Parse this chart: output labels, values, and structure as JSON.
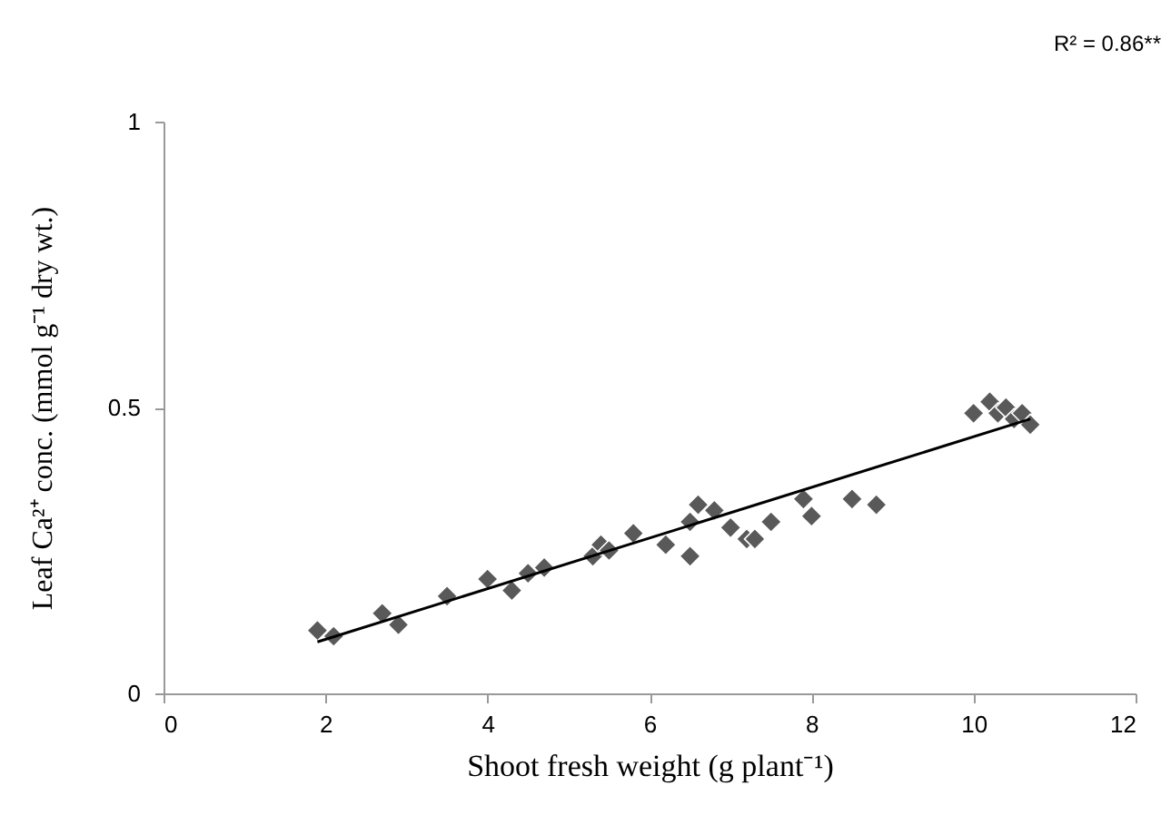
{
  "chart_data": {
    "type": "scatter",
    "xlabel": "Shoot fresh weight (g plant⁻¹)",
    "ylabel": "Leaf Ca²⁺ conc. (mmol g⁻¹ dry wt.)",
    "annotations": [
      "R² = 0.86**"
    ],
    "xlim": [
      0,
      12
    ],
    "xticks": [
      0,
      2,
      4,
      6,
      8,
      10,
      12
    ],
    "ylim": [
      0,
      1
    ],
    "yticks": [
      0,
      0.5,
      1
    ],
    "grid": false,
    "series": [
      {
        "marker": "diamond",
        "color": "#595959",
        "x": [
          1.9,
          2.1,
          2.7,
          2.9,
          3.5,
          4.0,
          4.3,
          4.5,
          4.7,
          5.3,
          5.4,
          5.5,
          5.8,
          6.2,
          6.5,
          6.5,
          6.6,
          6.8,
          7.0,
          7.2,
          7.3,
          7.5,
          7.9,
          8.0,
          8.5,
          8.8,
          10.0,
          10.2,
          10.3,
          10.4,
          10.5,
          10.6,
          10.7
        ],
        "values": [
          0.11,
          0.1,
          0.14,
          0.12,
          0.17,
          0.2,
          0.18,
          0.21,
          0.22,
          0.24,
          0.26,
          0.25,
          0.28,
          0.26,
          0.24,
          0.3,
          0.33,
          0.32,
          0.29,
          0.27,
          0.27,
          0.3,
          0.34,
          0.31,
          0.34,
          0.33,
          0.49,
          0.51,
          0.49,
          0.5,
          0.48,
          0.49,
          0.47
        ]
      },
      {
        "type": "line",
        "marker": "none",
        "color": "#000000",
        "x": [
          1.9,
          10.7
        ],
        "values": [
          0.09,
          0.48
        ]
      }
    ]
  }
}
